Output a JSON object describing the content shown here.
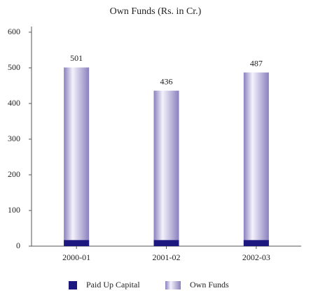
{
  "chart_data": {
    "type": "bar",
    "title": "Own Funds (Rs. in Cr.)",
    "categories": [
      "2000-01",
      "2001-02",
      "2002-03"
    ],
    "series": [
      {
        "name": "Own Funds",
        "color": "#8a80bd",
        "values": [
          501,
          436,
          487
        ]
      },
      {
        "name": "Paid Up Capital",
        "color": "#1c1880",
        "values": [
          17,
          17,
          17
        ]
      }
    ],
    "data_labels_series": "Own Funds",
    "ylim": [
      0,
      600
    ],
    "yticks": [
      0,
      100,
      200,
      300,
      400,
      500,
      600
    ],
    "grid": false,
    "legend": "bottom"
  }
}
